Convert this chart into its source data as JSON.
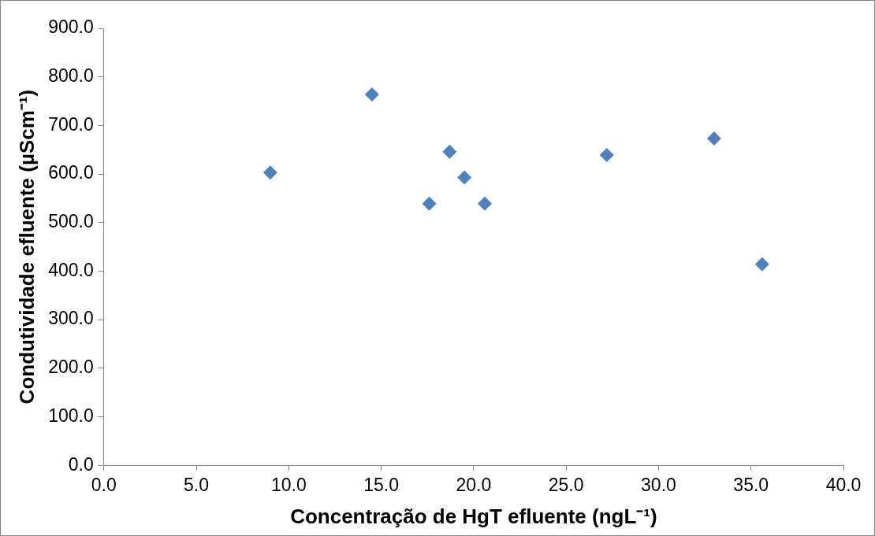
{
  "chart_data": {
    "type": "scatter",
    "xlabel": "Concentração de HgT efluente (ngL⁻¹)",
    "ylabel": "Condutividade efluente (µScm⁻¹)",
    "x": [
      9.0,
      14.5,
      17.6,
      18.7,
      19.5,
      20.6,
      27.2,
      33.0,
      35.6
    ],
    "series": [
      {
        "color": "#4f81bd",
        "values": [
          603,
          764,
          539,
          646,
          593,
          539,
          639,
          673,
          414
        ]
      }
    ],
    "xlim": [
      0,
      40
    ],
    "xticks": [
      {
        "value": 0,
        "label": "0.0"
      },
      {
        "value": 5,
        "label": "5.0"
      },
      {
        "value": 10,
        "label": "10.0"
      },
      {
        "value": 15,
        "label": "15.0"
      },
      {
        "value": 20,
        "label": "20.0"
      },
      {
        "value": 25,
        "label": "25.0"
      },
      {
        "value": 30,
        "label": "30.0"
      },
      {
        "value": 35,
        "label": "35.0"
      },
      {
        "value": 40,
        "label": "40.0"
      }
    ],
    "ylim": [
      0,
      900
    ],
    "yticks": [
      {
        "value": 0,
        "label": "0.0"
      },
      {
        "value": 100,
        "label": "100.0"
      },
      {
        "value": 200,
        "label": "200.0"
      },
      {
        "value": 300,
        "label": "300.0"
      },
      {
        "value": 400,
        "label": "400.0"
      },
      {
        "value": 500,
        "label": "500.0"
      },
      {
        "value": 600,
        "label": "600.0"
      },
      {
        "value": 700,
        "label": "700.0"
      },
      {
        "value": 800,
        "label": "800.0"
      },
      {
        "value": 900,
        "label": "900.0"
      }
    ],
    "grid": false,
    "legend": false,
    "marker": "diamond"
  }
}
